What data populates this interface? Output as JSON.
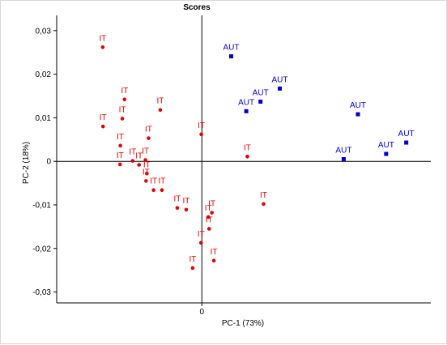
{
  "chart_data": {
    "type": "scatter",
    "title": "Scores",
    "xlabel": "PC-1 (73%)",
    "ylabel": "PC-2 (18%)",
    "xlim": [
      -0.052,
      0.082
    ],
    "ylim": [
      -0.0325,
      0.0335
    ],
    "x_ticks": [
      {
        "value": 0,
        "label": "0"
      }
    ],
    "y_ticks": [
      {
        "value": 0.03,
        "label": "0,03"
      },
      {
        "value": 0.02,
        "label": "0,02"
      },
      {
        "value": 0.01,
        "label": "0,01"
      },
      {
        "value": 0,
        "label": "0"
      },
      {
        "value": -0.01,
        "label": "-0,01"
      },
      {
        "value": -0.02,
        "label": "-0,02"
      },
      {
        "value": -0.03,
        "label": "-0,03"
      }
    ],
    "grid": false,
    "zero_lines": true,
    "series": [
      {
        "color": "#dd0000",
        "marker": "circle",
        "points": [
          {
            "x": -0.0355,
            "y": 0.0262,
            "label": "IT"
          },
          {
            "x": -0.0354,
            "y": 0.008,
            "label": "IT"
          },
          {
            "x": -0.0277,
            "y": 0.0142,
            "label": "IT"
          },
          {
            "x": -0.0285,
            "y": 0.0098,
            "label": "IT"
          },
          {
            "x": -0.0149,
            "y": 0.0118,
            "label": "IT"
          },
          {
            "x": -0.0292,
            "y": 0.0036,
            "label": "IT"
          },
          {
            "x": -0.0293,
            "y": -0.0007,
            "label": "IT"
          },
          {
            "x": -0.0248,
            "y": 0.0001,
            "label": "IT"
          },
          {
            "x": -0.0225,
            "y": -0.0008,
            "label": "IT"
          },
          {
            "x": -0.0191,
            "y": 0.0053,
            "label": "IT"
          },
          {
            "x": -0.0202,
            "y": 0.0003,
            "label": "IT"
          },
          {
            "x": -0.0197,
            "y": -0.0028,
            "label": "IT"
          },
          {
            "x": -0.02,
            "y": -0.0045,
            "label": "IT"
          },
          {
            "x": -0.0173,
            "y": -0.0066,
            "label": "IT"
          },
          {
            "x": -0.0143,
            "y": -0.0066,
            "label": "IT"
          },
          {
            "x": -0.0088,
            "y": -0.0107,
            "label": "IT"
          },
          {
            "x": -0.0056,
            "y": -0.0111,
            "label": "IT"
          },
          {
            "x": -0.0002,
            "y": 0.0062,
            "label": "IT"
          },
          {
            "x": 0.0163,
            "y": 0.0011,
            "label": "IT"
          },
          {
            "x": 0.0036,
            "y": -0.0118,
            "label": "IT"
          },
          {
            "x": 0.0023,
            "y": -0.0128,
            "label": "IT"
          },
          {
            "x": 0.0026,
            "y": -0.0155,
            "label": "IT"
          },
          {
            "x": -0.0003,
            "y": -0.0187,
            "label": "IT"
          },
          {
            "x": 0.0043,
            "y": -0.0228,
            "label": "IT"
          },
          {
            "x": -0.0033,
            "y": -0.0245,
            "label": "IT"
          },
          {
            "x": 0.0221,
            "y": -0.0098,
            "label": "IT"
          }
        ]
      },
      {
        "color": "#0000cc",
        "marker": "square",
        "points": [
          {
            "x": 0.0105,
            "y": 0.0241,
            "label": "AUT"
          },
          {
            "x": 0.0279,
            "y": 0.0167,
            "label": "AUT"
          },
          {
            "x": 0.021,
            "y": 0.0137,
            "label": "AUT"
          },
          {
            "x": 0.0159,
            "y": 0.0115,
            "label": "AUT"
          },
          {
            "x": 0.0559,
            "y": 0.0108,
            "label": "AUT"
          },
          {
            "x": 0.0732,
            "y": 0.0043,
            "label": "AUT"
          },
          {
            "x": 0.066,
            "y": 0.0017,
            "label": "AUT"
          },
          {
            "x": 0.0508,
            "y": 0.0005,
            "label": "AUT"
          }
        ]
      }
    ]
  }
}
